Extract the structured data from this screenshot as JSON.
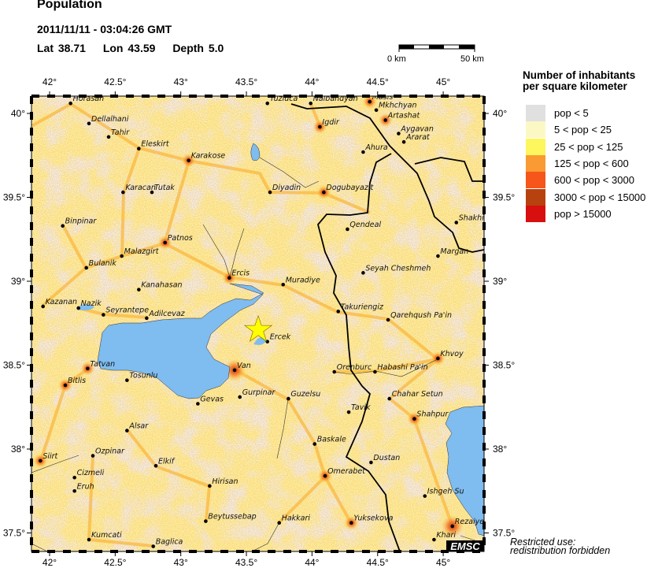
{
  "header": {
    "title": "Population",
    "datetime": "2011/11/11 - 03:04:26 GMT",
    "lat_label": "Lat 38.71",
    "lon_label": "Lon  43.59",
    "depth_label": "Depth  5.0"
  },
  "scale_bar": {
    "start_label": "0 km",
    "end_label": "50 km"
  },
  "epicenter": {
    "lat": 38.71,
    "lon": 43.59,
    "icon": "star-icon",
    "color": "#ffff00"
  },
  "axes": {
    "lon_ticks": [
      "42°",
      "42.5°",
      "43°",
      "43.5°",
      "44°",
      "44.5°",
      "45°"
    ],
    "lat_ticks": [
      "40°",
      "39.5°",
      "39°",
      "38.5°",
      "38°",
      "37.5°"
    ]
  },
  "legend": {
    "title_line1": "Number of inhabitants",
    "title_line2": "per square kilometer",
    "items": [
      {
        "label": "pop < 5",
        "color": "#e0e0e0"
      },
      {
        "label": "5 < pop < 25",
        "color": "#fbf8c4"
      },
      {
        "label": "25 < pop < 125",
        "color": "#fdf65c"
      },
      {
        "label": "125 < pop < 600",
        "color": "#f99a32"
      },
      {
        "label": "600 < pop < 3000",
        "color": "#f6561a"
      },
      {
        "label": "3000 < pop < 15000",
        "color": "#b8420f"
      },
      {
        "label": "pop > 15000",
        "color": "#d80f0f"
      }
    ]
  },
  "water_color": "#7fbcef",
  "logo": "EMSC",
  "restriction": {
    "line1": "Restricted use:",
    "line2": "redistribution forbidden"
  },
  "cities": [
    {
      "name": "Horasan",
      "lon": 42.16,
      "lat": 40.06
    },
    {
      "name": "Dellalhani",
      "lon": 42.3,
      "lat": 39.94
    },
    {
      "name": "Tahir",
      "lon": 42.45,
      "lat": 39.86
    },
    {
      "name": "Eleskirt",
      "lon": 42.68,
      "lat": 39.79
    },
    {
      "name": "Karakose",
      "lon": 43.06,
      "lat": 39.72
    },
    {
      "name": "Karacan",
      "lon": 42.56,
      "lat": 39.53
    },
    {
      "name": "Tutak",
      "lon": 42.78,
      "lat": 39.53
    },
    {
      "name": "Binpinar",
      "lon": 42.1,
      "lat": 39.33
    },
    {
      "name": "Patnos",
      "lon": 42.88,
      "lat": 39.23
    },
    {
      "name": "Malazgirt",
      "lon": 42.55,
      "lat": 39.15
    },
    {
      "name": "Bulanik",
      "lon": 42.28,
      "lat": 39.08
    },
    {
      "name": "Kanahasan",
      "lon": 42.68,
      "lat": 38.95
    },
    {
      "name": "Ercis",
      "lon": 43.37,
      "lat": 39.02
    },
    {
      "name": "Kazanan",
      "lon": 41.95,
      "lat": 38.85
    },
    {
      "name": "Nazik",
      "lon": 42.22,
      "lat": 38.84
    },
    {
      "name": "Seyrantepe",
      "lon": 42.41,
      "lat": 38.8
    },
    {
      "name": "Adilcevaz",
      "lon": 42.74,
      "lat": 38.78
    },
    {
      "name": "Tatvan",
      "lon": 42.29,
      "lat": 38.48
    },
    {
      "name": "Bitlis",
      "lon": 42.12,
      "lat": 38.38
    },
    {
      "name": "Tosunlu",
      "lon": 42.59,
      "lat": 38.41
    },
    {
      "name": "Van",
      "lon": 43.41,
      "lat": 38.47
    },
    {
      "name": "Gevas",
      "lon": 43.13,
      "lat": 38.27
    },
    {
      "name": "Gurpinar",
      "lon": 43.45,
      "lat": 38.31
    },
    {
      "name": "Alsar",
      "lon": 42.59,
      "lat": 38.11
    },
    {
      "name": "Ozpinar",
      "lon": 42.33,
      "lat": 37.96
    },
    {
      "name": "Siirt",
      "lon": 41.93,
      "lat": 37.93
    },
    {
      "name": "Elkif",
      "lon": 42.81,
      "lat": 37.9
    },
    {
      "name": "Cizmeli",
      "lon": 42.19,
      "lat": 37.83
    },
    {
      "name": "Eruh",
      "lon": 42.19,
      "lat": 37.75
    },
    {
      "name": "Hirisan",
      "lon": 43.22,
      "lat": 37.78
    },
    {
      "name": "Beytussebap",
      "lon": 43.19,
      "lat": 37.57
    },
    {
      "name": "Kumcati",
      "lon": 42.3,
      "lat": 37.46
    },
    {
      "name": "Baglica",
      "lon": 42.79,
      "lat": 37.42
    },
    {
      "name": "Tuzluca",
      "lon": 43.66,
      "lat": 40.06
    },
    {
      "name": "Nalbandyan",
      "lon": 43.99,
      "lat": 40.06
    },
    {
      "name": "Igdir",
      "lon": 44.06,
      "lat": 39.92
    },
    {
      "name": "Masis",
      "lon": 44.44,
      "lat": 40.07
    },
    {
      "name": "Mkhchyan",
      "lon": 44.49,
      "lat": 40.02
    },
    {
      "name": "Artashat",
      "lon": 44.56,
      "lat": 39.96
    },
    {
      "name": "Aygavan",
      "lon": 44.66,
      "lat": 39.88
    },
    {
      "name": "Ararat",
      "lon": 44.7,
      "lat": 39.83
    },
    {
      "name": "Ahura",
      "lon": 44.39,
      "lat": 39.77
    },
    {
      "name": "Diyadin",
      "lon": 43.68,
      "lat": 39.53
    },
    {
      "name": "Dogubayazit",
      "lon": 44.09,
      "lat": 39.53
    },
    {
      "name": "Qendeal",
      "lon": 44.27,
      "lat": 39.31
    },
    {
      "name": "Shakhi",
      "lon": 45.1,
      "lat": 39.35
    },
    {
      "name": "Margan",
      "lon": 44.96,
      "lat": 39.15
    },
    {
      "name": "Seyah Cheshmeh",
      "lon": 44.39,
      "lat": 39.05
    },
    {
      "name": "Muradiye",
      "lon": 43.78,
      "lat": 38.98
    },
    {
      "name": "Takuriengiz",
      "lon": 44.2,
      "lat": 38.82
    },
    {
      "name": "Qarehqush Pa'in",
      "lon": 44.58,
      "lat": 38.77
    },
    {
      "name": "Ercek",
      "lon": 43.66,
      "lat": 38.64
    },
    {
      "name": "Khvoy",
      "lon": 44.96,
      "lat": 38.54
    },
    {
      "name": "Orenburc",
      "lon": 44.17,
      "lat": 38.46
    },
    {
      "name": "Habashi Pa'in",
      "lon": 44.48,
      "lat": 38.46
    },
    {
      "name": "Guzelsu",
      "lon": 43.82,
      "lat": 38.3
    },
    {
      "name": "Chahar Setun",
      "lon": 44.59,
      "lat": 38.3
    },
    {
      "name": "Tavik",
      "lon": 44.28,
      "lat": 38.22
    },
    {
      "name": "Shahpur",
      "lon": 44.78,
      "lat": 38.18
    },
    {
      "name": "Baskale",
      "lon": 44.02,
      "lat": 38.03
    },
    {
      "name": "Dustan",
      "lon": 44.45,
      "lat": 37.92
    },
    {
      "name": "Omerabet",
      "lon": 44.1,
      "lat": 37.84
    },
    {
      "name": "Ishgeh Su",
      "lon": 44.86,
      "lat": 37.72
    },
    {
      "name": "Hakkari",
      "lon": 43.75,
      "lat": 37.56
    },
    {
      "name": "Yuksekova",
      "lon": 44.3,
      "lat": 37.56
    },
    {
      "name": "Rezaiye",
      "lon": 45.07,
      "lat": 37.54
    },
    {
      "name": "Khari",
      "lon": 44.93,
      "lat": 37.46
    }
  ]
}
